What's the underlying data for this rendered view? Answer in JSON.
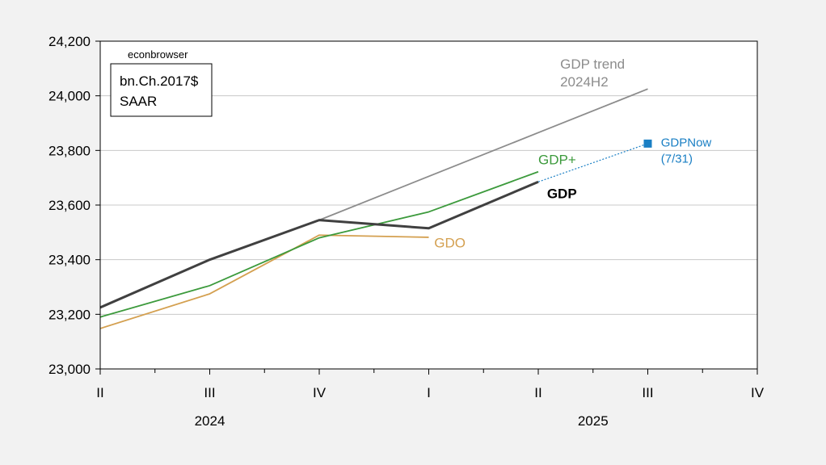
{
  "chart_data": {
    "type": "line",
    "x": [
      "2024 II",
      "2024 III",
      "2024 IV",
      "2025 I",
      "2025 II",
      "2025 III",
      "2025 IV"
    ],
    "x_tick_labels": [
      "II",
      "III",
      "IV",
      "I",
      "II",
      "III",
      "IV"
    ],
    "year_labels": [
      {
        "label": "2024",
        "at": 1
      },
      {
        "label": "2025",
        "at": 4.5
      }
    ],
    "ylim": [
      23000,
      24200
    ],
    "y_ticks": [
      23000,
      23200,
      23400,
      23600,
      23800,
      24000,
      24200
    ],
    "y_tick_labels": [
      "23,000",
      "23,200",
      "23,400",
      "23,600",
      "23,800",
      "24,000",
      "24,200"
    ],
    "grid": true,
    "source_label": "econbrowser",
    "units_box": [
      "bn.Ch.2017$",
      "SAAR"
    ],
    "series": [
      {
        "key": "gdp_trend",
        "name": [
          "GDP trend",
          "2024H2"
        ],
        "color": "#8c8c8c",
        "width": 1.8,
        "x": [
          2,
          3,
          4,
          5
        ],
        "values": [
          23545,
          23705,
          23865,
          24025
        ],
        "label_anchor": [
          4.2,
          24100
        ]
      },
      {
        "key": "gdo",
        "name": [
          "GDO"
        ],
        "color": "#d4a050",
        "width": 1.8,
        "x": [
          0,
          1,
          2,
          3
        ],
        "values": [
          23148,
          23275,
          23490,
          23482
        ],
        "label_anchor": [
          3.05,
          23445
        ]
      },
      {
        "key": "gdp_plus",
        "name": [
          "GDP+"
        ],
        "color": "#3c9a3c",
        "width": 1.8,
        "x": [
          0,
          1,
          2,
          3,
          4
        ],
        "values": [
          23190,
          23305,
          23480,
          23575,
          23722
        ],
        "label_anchor": [
          4.0,
          23750
        ]
      },
      {
        "key": "gdp",
        "name": [
          "GDP"
        ],
        "color": "#404040",
        "width": 3,
        "x": [
          0,
          1,
          2,
          3,
          4
        ],
        "values": [
          23225,
          23400,
          23545,
          23515,
          23685
        ],
        "label_anchor": [
          4.08,
          23625
        ],
        "bold_label": true
      },
      {
        "key": "gdpnow",
        "name": [
          "GDPNow",
          "(7/31)"
        ],
        "color": "#1a7fc4",
        "width": 1.2,
        "dotted": true,
        "x": [
          4,
          5
        ],
        "values": [
          23685,
          23825
        ],
        "marker_last": true,
        "label_anchor": [
          5.12,
          23815
        ]
      }
    ]
  }
}
